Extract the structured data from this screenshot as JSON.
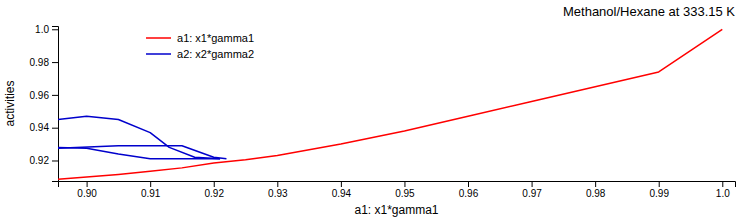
{
  "chart_data": {
    "type": "line",
    "title": "Methanol/Hexane at 333.15 K",
    "x_label": "a1: x1*gamma1",
    "y_label": "activities",
    "xlim": [
      0.8955,
      1.002
    ],
    "ylim": [
      0.9075,
      1.002
    ],
    "xticks": [
      {
        "value": 0.9,
        "label": "0.90"
      },
      0.91,
      0.92,
      0.93,
      0.94,
      0.95,
      0.96,
      0.97,
      0.98,
      0.99,
      {
        "value": 1.0,
        "label": "1.0"
      }
    ],
    "yticks": [
      0.92,
      0.94,
      0.96,
      0.98,
      {
        "value": 1.0,
        "label": "1.0"
      }
    ],
    "grid": false,
    "legend": "upper left",
    "series": [
      {
        "name": "a1: x1*gamma1",
        "color": "#ff0000",
        "x": [
          0.8955,
          0.905,
          0.91,
          0.915,
          0.92,
          0.925,
          0.93,
          0.94,
          0.95,
          0.96,
          0.97,
          0.98,
          0.99,
          1.0
        ],
        "values": [
          0.9085,
          0.9115,
          0.9135,
          0.9155,
          0.9185,
          0.9205,
          0.923,
          0.93,
          0.938,
          0.947,
          0.956,
          0.965,
          0.974,
          1.0
        ]
      },
      {
        "name": "a2: x2*gamma2",
        "color": "#0000cc",
        "x": [
          0.8955,
          0.905,
          0.91,
          0.915,
          0.92,
          0.922
        ],
        "values": [
          0.9275,
          0.929,
          0.929,
          0.929,
          0.922,
          0.921
        ]
      },
      {
        "color": "#0000cc",
        "x": [
          0.8955,
          0.9,
          0.905,
          0.91,
          0.913,
          0.917,
          0.921
        ],
        "values": [
          0.945,
          0.947,
          0.945,
          0.937,
          0.928,
          0.922,
          0.921
        ]
      },
      {
        "color": "#0000cc",
        "x": [
          0.8955,
          0.9,
          0.905,
          0.91,
          0.913,
          0.917,
          0.921
        ],
        "values": [
          0.928,
          0.9275,
          0.924,
          0.921,
          0.921,
          0.921,
          0.921
        ]
      }
    ]
  }
}
